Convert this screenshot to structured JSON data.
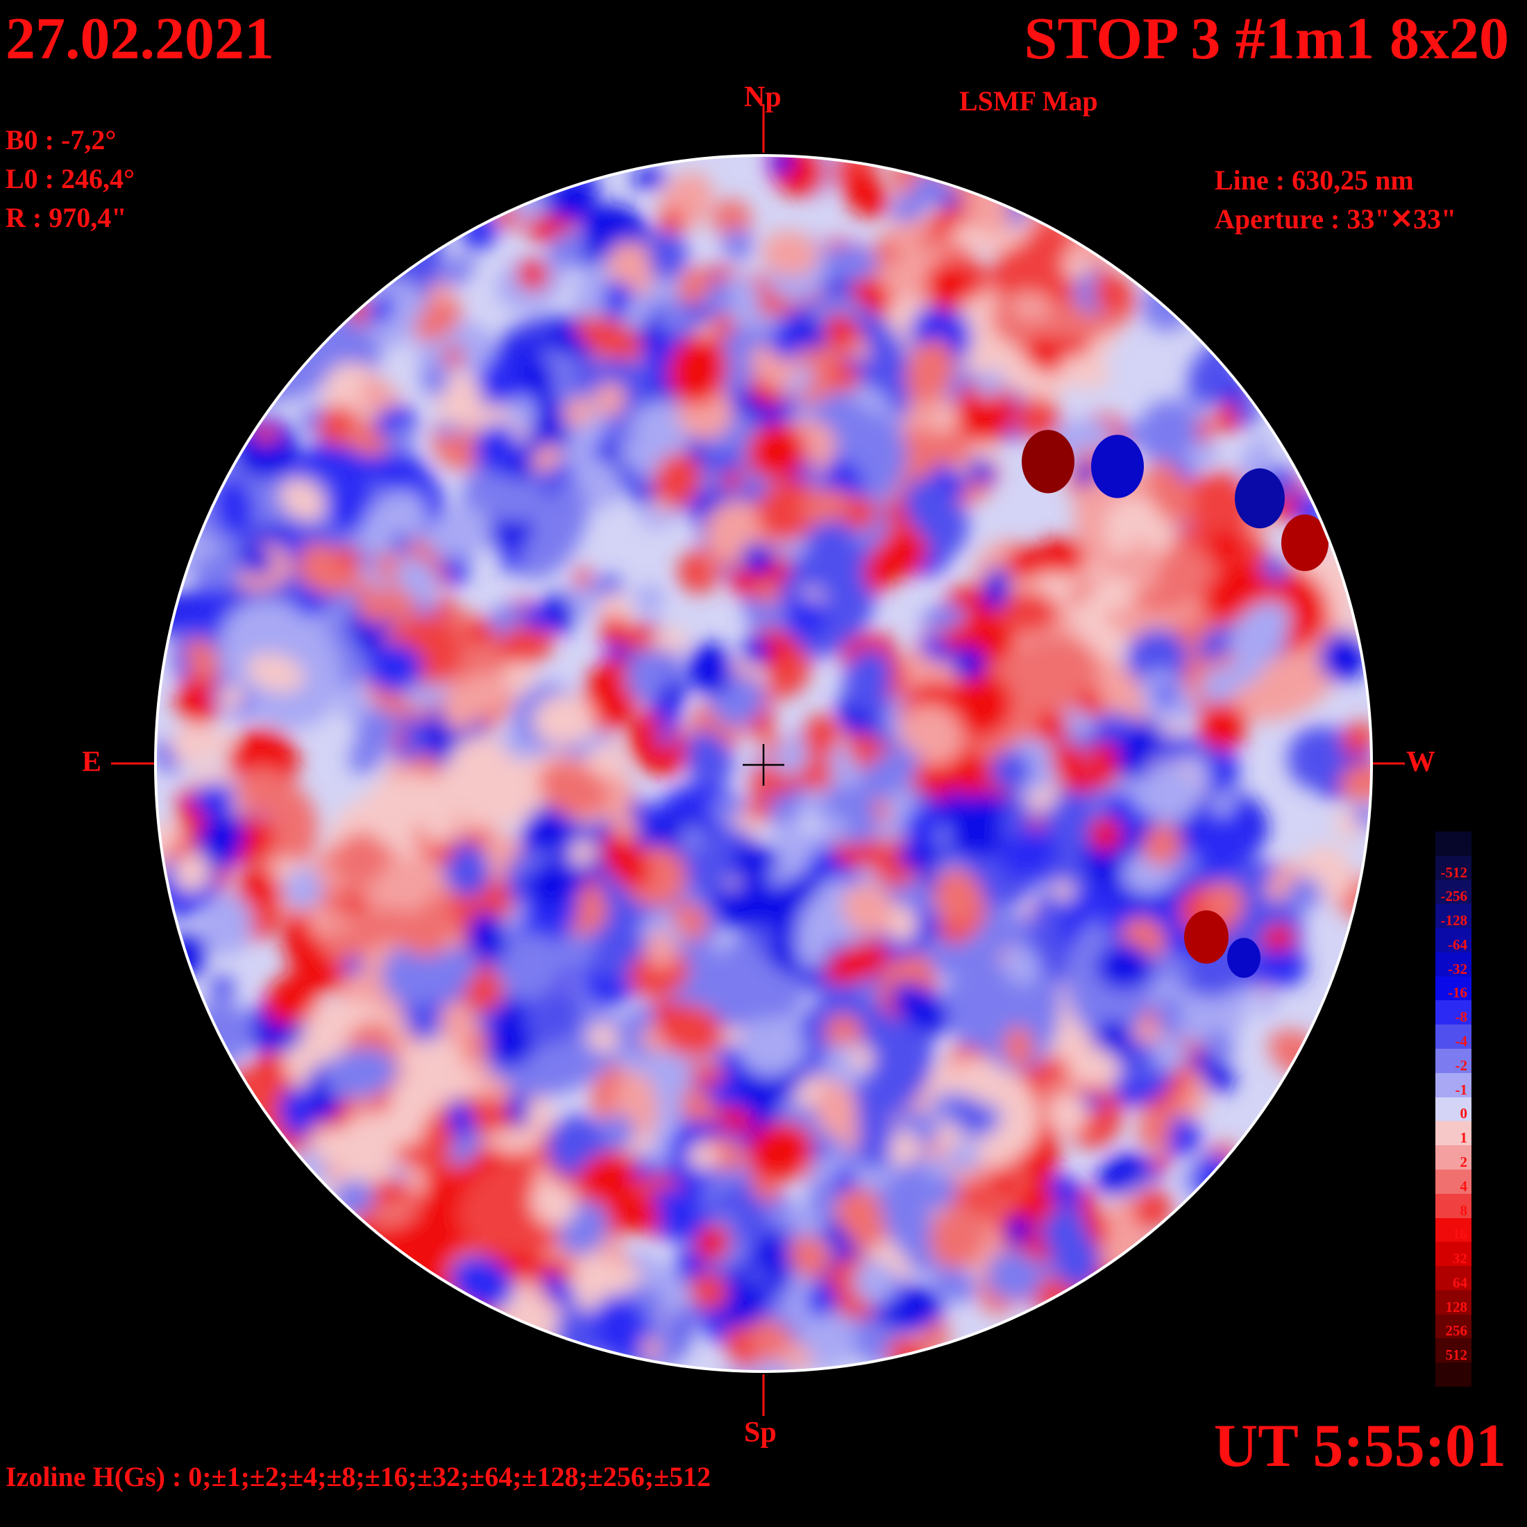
{
  "header": {
    "date": "27.02.2021",
    "title": "STOP 3 #1m1 8x20",
    "subtitle": "LSMF  Map"
  },
  "params": {
    "b0": "B0 : -7,2°",
    "l0": "L0 : 246,4°",
    "radius": "R  : 970,4\"",
    "line": "Line :  630,25 nm",
    "aperture": "Aperture : 33\"✕33\""
  },
  "orientation": {
    "north": "Np",
    "south": "Sp",
    "east": "E",
    "west": "W"
  },
  "footer": {
    "time": "UT 5:55:01",
    "izoline": "Izoline H(Gs) : 0;±1;±2;±4;±8;±16;±32;±64;±128;±256;±512"
  },
  "colorbar": {
    "levels": [
      {
        "label": "",
        "color": "#06062a"
      },
      {
        "label": "-512",
        "color": "#0a0a48"
      },
      {
        "label": "-256",
        "color": "#0c0c62"
      },
      {
        "label": "-128",
        "color": "#0c0c86"
      },
      {
        "label": "-64",
        "color": "#0a0aa8"
      },
      {
        "label": "-32",
        "color": "#0808c8"
      },
      {
        "label": "-16",
        "color": "#0a0ae8"
      },
      {
        "label": "-8",
        "color": "#2a2af4"
      },
      {
        "label": "-4",
        "color": "#5050ee"
      },
      {
        "label": "-2",
        "color": "#7c7cf0"
      },
      {
        "label": "-1",
        "color": "#a8a8f4"
      },
      {
        "label": "0",
        "color": "#d4d4f6"
      },
      {
        "label": "1",
        "color": "#f6c8c8"
      },
      {
        "label": "2",
        "color": "#f4a0a0"
      },
      {
        "label": "4",
        "color": "#f07070"
      },
      {
        "label": "8",
        "color": "#f04040"
      },
      {
        "label": "16",
        "color": "#f00a0a"
      },
      {
        "label": "32",
        "color": "#d40000"
      },
      {
        "label": "64",
        "color": "#b00000"
      },
      {
        "label": "128",
        "color": "#8c0000"
      },
      {
        "label": "256",
        "color": "#6a0000"
      },
      {
        "label": "512",
        "color": "#480000"
      },
      {
        "label": "",
        "color": "#2a0000"
      }
    ]
  },
  "colors": {
    "text": "#ff1010",
    "background": "#000000",
    "positive": "#f00a0a",
    "negative": "#0a0ae8",
    "neutral": "#ffffff"
  }
}
